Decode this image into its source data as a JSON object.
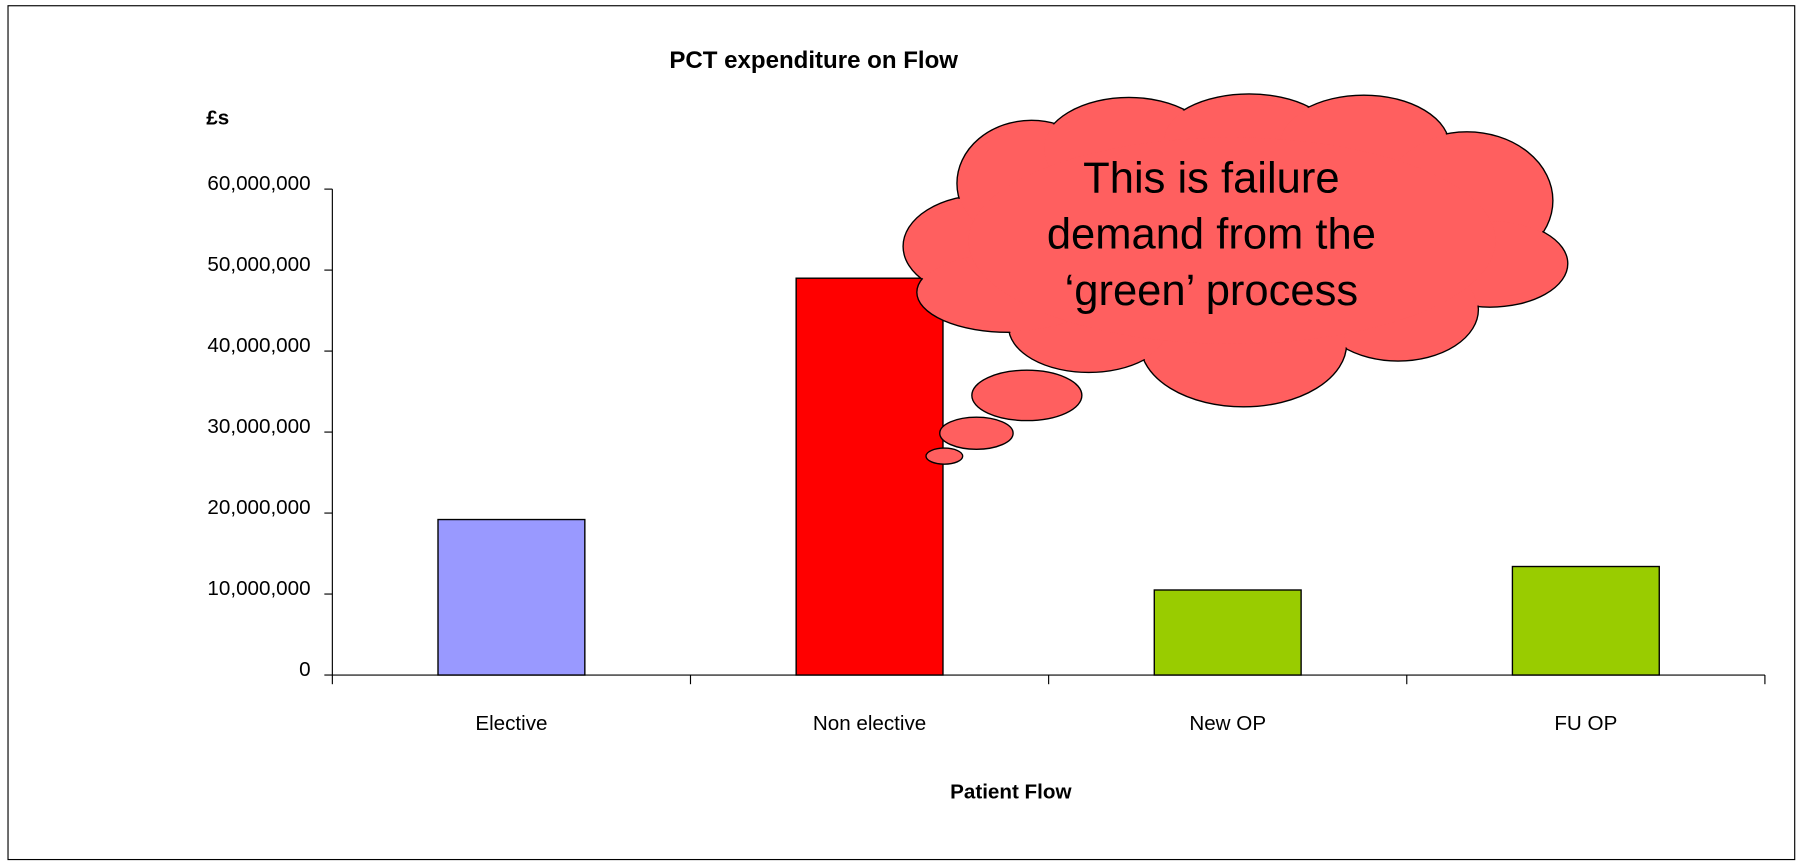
{
  "chart_data": {
    "type": "bar",
    "title": "PCT expenditure on Flow",
    "y_label": "£s",
    "x_label": "Patient Flow",
    "categories": [
      "Elective",
      "Non elective",
      "New OP",
      "FU OP"
    ],
    "values": [
      19200000,
      49000000,
      10500000,
      13400000
    ],
    "colors": [
      "#9999ff",
      "#ff0000",
      "#99cc00",
      "#99cc00"
    ],
    "ylim": [
      0,
      60000000
    ],
    "yticks": [
      0,
      {
        "value": 10000000,
        "label": "10,000,000"
      },
      {
        "value": 20000000,
        "label": "20,000,000"
      },
      {
        "value": 30000000,
        "label": "30,000,000"
      },
      {
        "value": 40000000,
        "label": "40,000,000"
      },
      {
        "value": 50000000,
        "label": "50,000,000"
      },
      {
        "value": 60000000,
        "label": "60,000,000"
      }
    ],
    "grid": false,
    "annotation": [
      "This is failure",
      "demand from the",
      "‘green’ process"
    ]
  }
}
